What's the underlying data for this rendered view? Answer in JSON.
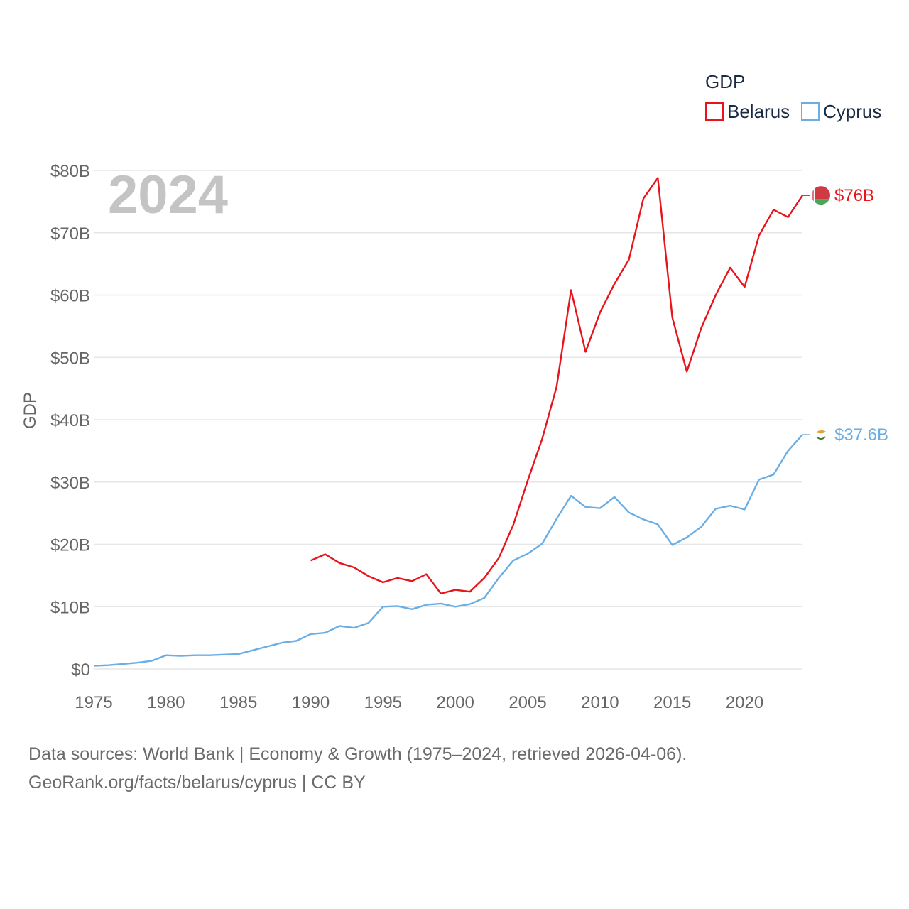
{
  "chart_data": {
    "type": "line",
    "year_label": "2024",
    "ylabel": "GDP",
    "xlabel": "",
    "xlim": [
      1975,
      2024
    ],
    "ylim": [
      0,
      80
    ],
    "y_unit": "billion USD",
    "x_ticks": [
      1975,
      1980,
      1985,
      1990,
      1995,
      2000,
      2005,
      2010,
      2015,
      2020
    ],
    "y_ticks": [
      0,
      10,
      20,
      30,
      40,
      50,
      60,
      70,
      80
    ],
    "y_tick_labels": [
      "$0",
      "$10B",
      "$20B",
      "$30B",
      "$40B",
      "$50B",
      "$60B",
      "$70B",
      "$80B"
    ],
    "legend": {
      "title": "GDP",
      "position": "top-right"
    },
    "series": [
      {
        "name": "Belarus",
        "color": "#e8141b",
        "end_label": "$76B",
        "flag_icon": "belarus-flag-icon",
        "x": [
          1990,
          1991,
          1992,
          1993,
          1994,
          1995,
          1996,
          1997,
          1998,
          1999,
          2000,
          2001,
          2002,
          2003,
          2004,
          2005,
          2006,
          2007,
          2008,
          2009,
          2010,
          2011,
          2012,
          2013,
          2014,
          2015,
          2016,
          2017,
          2018,
          2019,
          2020,
          2021,
          2022,
          2023,
          2024
        ],
        "values": [
          17.4,
          18.4,
          17.0,
          16.3,
          14.9,
          13.9,
          14.6,
          14.1,
          15.2,
          12.1,
          12.7,
          12.4,
          14.6,
          17.8,
          23.1,
          30.2,
          36.9,
          45.3,
          60.8,
          50.9,
          57.2,
          61.8,
          65.7,
          75.5,
          78.8,
          56.4,
          47.7,
          54.7,
          60.0,
          64.4,
          61.3,
          69.6,
          73.7,
          72.5,
          76.0
        ]
      },
      {
        "name": "Cyprus",
        "color": "#6aaee6",
        "end_label": "$37.6B",
        "flag_icon": "cyprus-flag-icon",
        "x": [
          1975,
          1976,
          1977,
          1978,
          1979,
          1980,
          1981,
          1982,
          1983,
          1984,
          1985,
          1986,
          1987,
          1988,
          1989,
          1990,
          1991,
          1992,
          1993,
          1994,
          1995,
          1996,
          1997,
          1998,
          1999,
          2000,
          2001,
          2002,
          2003,
          2004,
          2005,
          2006,
          2007,
          2008,
          2009,
          2010,
          2011,
          2012,
          2013,
          2014,
          2015,
          2016,
          2017,
          2018,
          2019,
          2020,
          2021,
          2022,
          2023,
          2024
        ],
        "values": [
          0.5,
          0.6,
          0.8,
          1.0,
          1.3,
          2.2,
          2.1,
          2.2,
          2.2,
          2.3,
          2.4,
          3.0,
          3.6,
          4.2,
          4.5,
          5.6,
          5.8,
          6.9,
          6.6,
          7.4,
          10.0,
          10.1,
          9.6,
          10.3,
          10.5,
          10.0,
          10.4,
          11.4,
          14.6,
          17.4,
          18.5,
          20.1,
          24.1,
          27.8,
          26.0,
          25.8,
          27.6,
          25.1,
          24.0,
          23.2,
          19.9,
          21.1,
          22.8,
          25.7,
          26.2,
          25.6,
          30.4,
          31.2,
          35.0,
          37.6
        ]
      }
    ]
  },
  "source": {
    "line1": "Data sources: World Bank | Economy & Growth (1975–2024, retrieved 2026-04-06).",
    "line2": "GeoRank.org/facts/belarus/cyprus | CC BY"
  }
}
